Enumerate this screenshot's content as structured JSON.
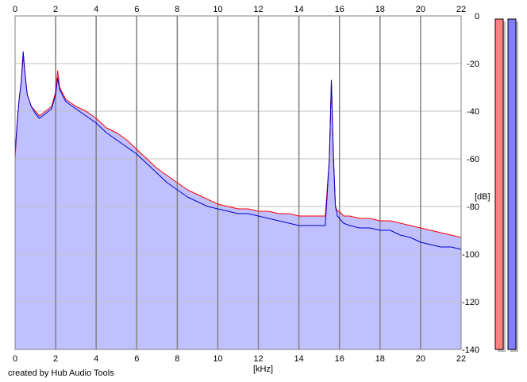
{
  "chart_data": {
    "type": "line",
    "xlabel": "[kHz]",
    "ylabel": "[dB]",
    "xlim": [
      0,
      22
    ],
    "ylim": [
      -140,
      0
    ],
    "x_ticks": [
      0,
      2,
      4,
      6,
      8,
      10,
      12,
      14,
      16,
      18,
      20,
      22
    ],
    "y_ticks": [
      0,
      -20,
      -40,
      -60,
      -80,
      -100,
      -120,
      -140
    ],
    "grid": true,
    "credit": "created by Hub Audio Tools",
    "colors": {
      "background": "#ffffff",
      "fill": "#c0c0ff",
      "left_channel": "#ff0000",
      "right_channel": "#0000cc",
      "grid_major": "#808080",
      "grid_minor": "#c0c0c0",
      "meter_left": "#ff8080",
      "meter_right": "#8080ff"
    },
    "series": [
      {
        "channel": "left",
        "x": [
          0,
          0.1,
          0.2,
          0.3,
          0.4,
          0.5,
          0.6,
          0.8,
          1.0,
          1.2,
          1.5,
          1.8,
          2.0,
          2.1,
          2.2,
          2.5,
          3.0,
          3.5,
          4.0,
          4.5,
          5.0,
          5.5,
          6.0,
          6.5,
          7.0,
          7.5,
          8.0,
          8.5,
          9.0,
          9.5,
          10.0,
          10.5,
          11.0,
          11.5,
          12.0,
          12.5,
          13.0,
          13.5,
          14.0,
          14.5,
          15.0,
          15.3,
          15.5,
          15.6,
          15.7,
          15.8,
          15.9,
          16.0,
          16.2,
          16.5,
          17.0,
          17.5,
          18.0,
          18.5,
          19.0,
          19.5,
          20.0,
          20.5,
          21.0,
          21.5,
          22.0
        ],
        "y": [
          -60,
          -45,
          -35,
          -28,
          -17,
          -25,
          -33,
          -38,
          -40,
          -42,
          -40,
          -38,
          -32,
          -23,
          -30,
          -35,
          -38,
          -40,
          -43,
          -47,
          -49,
          -52,
          -56,
          -60,
          -64,
          -67,
          -70,
          -73,
          -75,
          -77,
          -79,
          -80,
          -81,
          -81,
          -82,
          -82,
          -83,
          -83,
          -84,
          -84,
          -84,
          -84,
          -60,
          -27,
          -60,
          -80,
          -82,
          -82,
          -84,
          -84,
          -85,
          -85,
          -86,
          -86,
          -87,
          -88,
          -89,
          -90,
          -91,
          -92,
          -93
        ]
      },
      {
        "channel": "right",
        "x": [
          0,
          0.1,
          0.2,
          0.3,
          0.4,
          0.5,
          0.6,
          0.8,
          1.0,
          1.2,
          1.5,
          1.8,
          2.0,
          2.1,
          2.2,
          2.5,
          3.0,
          3.5,
          4.0,
          4.5,
          5.0,
          5.5,
          6.0,
          6.5,
          7.0,
          7.5,
          8.0,
          8.5,
          9.0,
          9.5,
          10.0,
          10.5,
          11.0,
          11.5,
          12.0,
          12.5,
          13.0,
          13.5,
          14.0,
          14.5,
          15.0,
          15.3,
          15.5,
          15.6,
          15.7,
          15.8,
          15.9,
          16.0,
          16.2,
          16.5,
          17.0,
          17.5,
          18.0,
          18.5,
          19.0,
          19.5,
          20.0,
          20.5,
          21.0,
          21.5,
          22.0
        ],
        "y": [
          -58,
          -45,
          -35,
          -28,
          -15,
          -25,
          -33,
          -38,
          -41,
          -43,
          -41,
          -39,
          -33,
          -26,
          -31,
          -36,
          -39,
          -42,
          -45,
          -49,
          -52,
          -55,
          -58,
          -62,
          -66,
          -70,
          -73,
          -76,
          -78,
          -80,
          -81,
          -82,
          -83,
          -83,
          -84,
          -85,
          -86,
          -87,
          -88,
          -88,
          -88,
          -88,
          -60,
          -27,
          -58,
          -80,
          -84,
          -85,
          -87,
          -88,
          -89,
          -89,
          -90,
          -90,
          -92,
          -93,
          -95,
          -96,
          -97,
          -97,
          -98
        ]
      }
    ],
    "meters": [
      {
        "channel": "left",
        "level_db": -140
      },
      {
        "channel": "right",
        "level_db": -140
      }
    ]
  }
}
